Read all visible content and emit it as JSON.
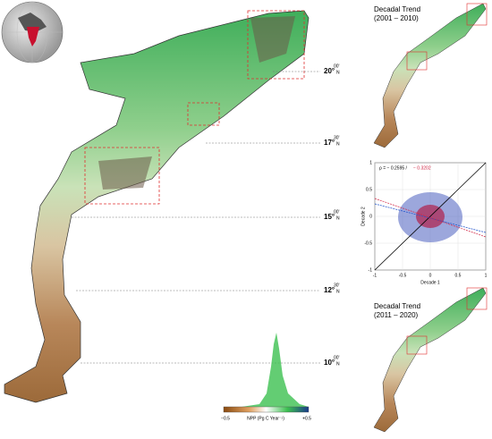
{
  "main_map": {
    "latitudes": [
      {
        "deg": "20°",
        "min": "00'",
        "hemi": "N"
      },
      {
        "deg": "17°",
        "min": "30'",
        "hemi": "N"
      },
      {
        "deg": "15°",
        "min": "00'",
        "hemi": "N"
      },
      {
        "deg": "12°",
        "min": "30'",
        "hemi": "N"
      },
      {
        "deg": "10°",
        "min": "00'",
        "hemi": "N"
      }
    ]
  },
  "colorbar": {
    "min_label": "−0.5",
    "title": "NPP (Pg C Year⁻¹)",
    "max_label": "+0.5"
  },
  "panel_top": {
    "title_line1": "Decadal Trend",
    "title_line2": "(2001 – 2010)"
  },
  "scatter": {
    "correlation_black": "ρ = − 0.2595 /",
    "correlation_red": "− 0.3202",
    "x_label": "Decade 1",
    "y_label": "Decade 2",
    "xticks": [
      -1,
      -0.5,
      0,
      0.5,
      1
    ],
    "yticks": [
      -1,
      -0.5,
      0,
      0.5,
      1
    ]
  },
  "panel_bottom": {
    "title_line1": "Decadal Trend",
    "title_line2": "(2011 – 2020)"
  }
}
